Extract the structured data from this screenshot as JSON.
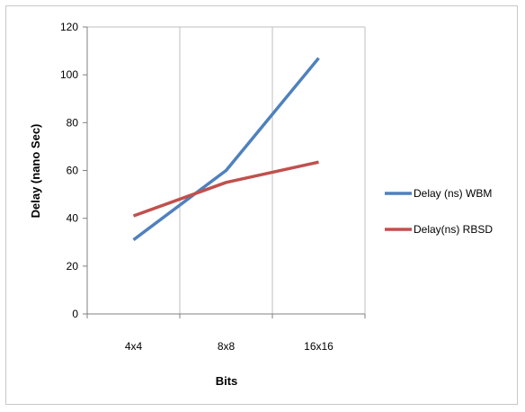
{
  "chart_data": {
    "type": "line",
    "categories": [
      "4x4",
      "8x8",
      "16x16"
    ],
    "series": [
      {
        "name": "Delay (ns) WBM",
        "values": [
          31,
          60,
          107
        ],
        "color": "#4f81bd"
      },
      {
        "name": "Delay(ns) RBSD",
        "values": [
          41,
          55,
          63.5
        ],
        "color": "#c0504d"
      }
    ],
    "xlabel": "Bits",
    "ylabel": "Delay (nano Sec)",
    "ylim": [
      0,
      120
    ],
    "yticks": [
      0,
      20,
      40,
      60,
      80,
      100,
      120
    ],
    "grid": "vertical",
    "legend": "right"
  }
}
